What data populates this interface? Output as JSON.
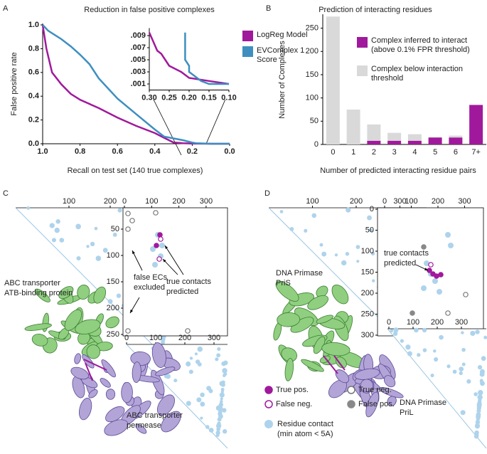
{
  "chart_data": [
    {
      "type": "line",
      "title": "Reduction in false positive complexes",
      "x_label": "Recall on test set (140 true complexes)",
      "y_label": "False positive rate",
      "xlim": [
        1,
        0
      ],
      "xticks": [
        {
          "value": 1,
          "label": "1.0"
        },
        {
          "value": 0.8,
          "label": "0.8"
        },
        {
          "value": 0.6,
          "label": "0.6"
        },
        {
          "value": 0.4,
          "label": "0.4"
        },
        {
          "value": 0.2,
          "label": "0.2"
        },
        {
          "value": 0,
          "label": "0.0"
        }
      ],
      "ylim": [
        0,
        1
      ],
      "yticks": [
        {
          "value": 0,
          "label": "0.0"
        },
        {
          "value": 0.2,
          "label": "0.2"
        },
        {
          "value": 0.4,
          "label": "0.4"
        },
        {
          "value": 0.6,
          "label": "0.6"
        },
        {
          "value": 0.8,
          "label": "0.8"
        },
        {
          "value": 1,
          "label": "1.0"
        }
      ],
      "series": [
        {
          "name": "LogReg Model",
          "color": "#a0199c",
          "x": [
            1,
            0.98,
            0.95,
            0.9,
            0.85,
            0.8,
            0.7,
            0.6,
            0.5,
            0.4,
            0.35,
            0.3,
            0.25,
            0.2,
            0.1,
            0
          ],
          "values": [
            1,
            0.8,
            0.6,
            0.5,
            0.42,
            0.37,
            0.3,
            0.22,
            0.15,
            0.09,
            0.05,
            0.01,
            0.005,
            0.002,
            0,
            0
          ]
        },
        {
          "name": "EVComplex 1 Score",
          "color": "#3e8fc0",
          "x": [
            1,
            0.97,
            0.9,
            0.85,
            0.8,
            0.75,
            0.7,
            0.6,
            0.5,
            0.4,
            0.35,
            0.25,
            0.2,
            0.18,
            0.1,
            0
          ],
          "values": [
            1,
            0.95,
            0.88,
            0.82,
            0.75,
            0.67,
            0.55,
            0.38,
            0.25,
            0.12,
            0.06,
            0.03,
            0.01,
            0.005,
            0,
            0
          ]
        }
      ]
    },
    {
      "type": "line",
      "xlim": [
        0.3,
        0.1
      ],
      "xticks": [
        {
          "value": 0.3,
          "label": "0.30"
        },
        {
          "value": 0.25,
          "label": "0.25"
        },
        {
          "value": 0.2,
          "label": "0.20"
        },
        {
          "value": 0.15,
          "label": "0.15"
        },
        {
          "value": 0.1,
          "label": "0.10"
        }
      ],
      "ylim": [
        0,
        0.01
      ],
      "yticks": [
        {
          "value": 0.001,
          "label": ".001"
        },
        {
          "value": 0.003,
          "label": ".003"
        },
        {
          "value": 0.005,
          "label": ".005"
        },
        {
          "value": 0.007,
          "label": ".007"
        },
        {
          "value": 0.009,
          "label": ".009"
        }
      ],
      "series": [
        {
          "color": "#a0199c",
          "x": [
            0.3,
            0.29,
            0.28,
            0.27,
            0.25,
            0.22,
            0.2,
            0.15,
            0.1
          ],
          "values": [
            0.0095,
            0.008,
            0.0065,
            0.006,
            0.004,
            0.003,
            0.002,
            0.0015,
            0.001
          ]
        },
        {
          "color": "#3e8fc0",
          "x": [
            0.21,
            0.21,
            0.2,
            0.2,
            0.18,
            0.17,
            0.15,
            0.1
          ],
          "values": [
            0.0095,
            0.005,
            0.004,
            0.003,
            0.002,
            0.0015,
            0.001,
            0.001
          ]
        }
      ]
    },
    {
      "type": "bar",
      "stacked": true,
      "title": "Prediction of interacting residues",
      "x_label": "Number of predicted interacting residue pairs",
      "y_label": "Number of Complexes",
      "categories": [
        "0",
        "1",
        "2",
        "3",
        "4",
        "5",
        "6",
        "7+"
      ],
      "ylim": [
        0,
        280
      ],
      "yticks": [
        0,
        50,
        100,
        150,
        200,
        250
      ],
      "series": [
        {
          "name": "Complex inferred to interact (above 0.1% FPR threshold)",
          "color": "#a0199c",
          "values": [
            0,
            0,
            8,
            8,
            8,
            15,
            15,
            85
          ]
        },
        {
          "name": "Complex below interaction threshold",
          "color": "#d9d9d9",
          "values": [
            275,
            75,
            35,
            17,
            14,
            1,
            4,
            0
          ]
        }
      ]
    }
  ],
  "panels": {
    "A": "A",
    "B": "B",
    "C": {
      "letter": "C",
      "map_ticks": [
        100,
        200
      ],
      "inset_top_ticks": [
        0,
        100,
        200,
        300
      ],
      "inset_left_ticks": [
        50,
        100,
        150,
        200,
        250
      ],
      "lower_ticks": [
        0,
        100,
        200,
        300
      ],
      "protein_a": [
        "ABC transporter",
        "ATB-binding protein"
      ],
      "protein_b": [
        "ABC transporter",
        "permease"
      ],
      "note_false": [
        "false ECs",
        "excluded"
      ],
      "note_true": [
        "true contacts",
        "predicted"
      ]
    },
    "D": {
      "letter": "D",
      "map_ticks": [
        100,
        200,
        300
      ],
      "inset_top_ticks": [
        0,
        100,
        200,
        300
      ],
      "inset_left_ticks": [
        0,
        50,
        100,
        150,
        200,
        250,
        300
      ],
      "lower_ticks": [
        0,
        100,
        200,
        300
      ],
      "protein_a": [
        "DNA Primase",
        "PriS"
      ],
      "protein_b": [
        "DNA Primase",
        "PriL"
      ],
      "note_true": [
        "true contacts",
        "predicted"
      ]
    },
    "legend": {
      "true_pos": "True pos.",
      "false_neg": "False neg.",
      "true_neg": "True neg.",
      "false_pos": "False pos.",
      "contact": [
        "Residue contact",
        "(min atom < 5A)"
      ]
    }
  }
}
